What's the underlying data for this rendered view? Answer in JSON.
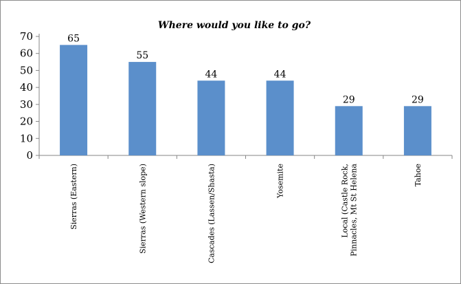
{
  "chart_data": {
    "type": "bar",
    "title": "Where would you like to go?",
    "categories": [
      [
        "Sierras (Eastern)"
      ],
      [
        "Sierras (Western slope)"
      ],
      [
        "Cascades (Lassen/Shasta)"
      ],
      [
        "Yosemite"
      ],
      [
        "Local (Castle Rock,",
        "Pinnacles, Mt St Helena"
      ],
      [
        "Tahoe"
      ]
    ],
    "values": [
      65,
      55,
      44,
      44,
      29,
      29
    ],
    "data_labels": [
      "65",
      "55",
      "44",
      "44",
      "29",
      "29"
    ],
    "y_ticks": [
      "0",
      "10",
      "20",
      "30",
      "40",
      "50",
      "60",
      "70"
    ],
    "ylim": [
      0,
      70
    ],
    "grid": false,
    "legend": "none",
    "bar_color": "#5b8fcb",
    "axis_color": "#868686"
  }
}
